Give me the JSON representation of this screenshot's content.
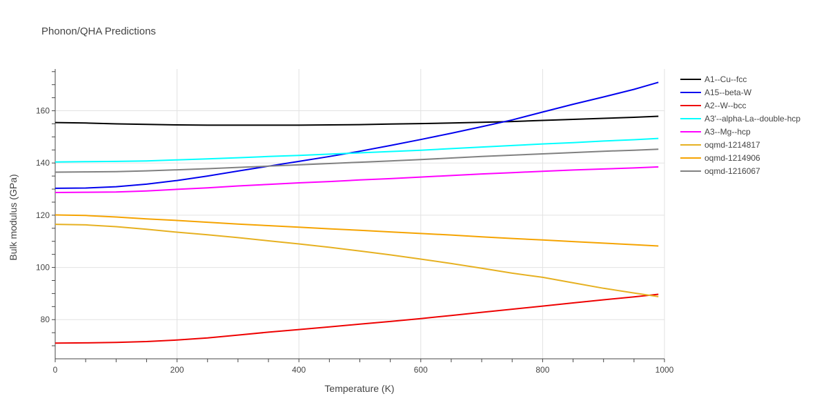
{
  "chart_data": {
    "type": "line",
    "title": "Phonon/QHA Predictions",
    "xlabel": "Temperature (K)",
    "ylabel": "Bulk modulus (GPa)",
    "xlim": [
      0,
      1000
    ],
    "ylim": [
      65,
      176
    ],
    "x_ticks": [
      0,
      200,
      400,
      600,
      800,
      1000
    ],
    "y_ticks": [
      80,
      100,
      120,
      140,
      160
    ],
    "grid": true,
    "legend_position": "right",
    "series": [
      {
        "name": "A1--Cu--fcc",
        "color": "#000000",
        "x": [
          0,
          50,
          100,
          150,
          200,
          250,
          300,
          350,
          400,
          450,
          500,
          550,
          600,
          650,
          700,
          750,
          800,
          850,
          900,
          950,
          990
        ],
        "y": [
          155.5,
          155.3,
          155.0,
          154.8,
          154.6,
          154.5,
          154.5,
          154.5,
          154.5,
          154.6,
          154.7,
          154.9,
          155.1,
          155.3,
          155.6,
          155.9,
          156.3,
          156.7,
          157.1,
          157.5,
          157.9
        ]
      },
      {
        "name": "A15--beta-W",
        "color": "#0000ee",
        "x": [
          0,
          50,
          100,
          150,
          200,
          250,
          300,
          350,
          400,
          450,
          500,
          550,
          600,
          650,
          700,
          750,
          800,
          850,
          900,
          950,
          990
        ],
        "y": [
          130.3,
          130.4,
          130.9,
          131.9,
          133.3,
          135.0,
          136.9,
          138.8,
          140.6,
          142.5,
          144.5,
          146.7,
          149.0,
          151.4,
          153.9,
          156.5,
          159.5,
          162.5,
          165.3,
          168.2,
          170.9
        ]
      },
      {
        "name": "A2--W--bcc",
        "color": "#ee0000",
        "x": [
          0,
          50,
          100,
          150,
          200,
          250,
          300,
          350,
          400,
          450,
          500,
          550,
          600,
          650,
          700,
          750,
          800,
          850,
          900,
          950,
          990
        ],
        "y": [
          71.0,
          71.1,
          71.3,
          71.6,
          72.2,
          73.0,
          74.1,
          75.2,
          76.2,
          77.2,
          78.3,
          79.3,
          80.4,
          81.6,
          82.8,
          84.0,
          85.2,
          86.4,
          87.6,
          88.7,
          89.7
        ]
      },
      {
        "name": "A3'--alpha-La--double-hcp",
        "color": "#00ffff",
        "x": [
          0,
          50,
          100,
          150,
          200,
          250,
          300,
          350,
          400,
          450,
          500,
          550,
          600,
          650,
          700,
          750,
          800,
          850,
          900,
          950,
          990
        ],
        "y": [
          140.4,
          140.5,
          140.6,
          140.8,
          141.2,
          141.6,
          142.0,
          142.5,
          142.9,
          143.4,
          143.9,
          144.4,
          144.9,
          145.5,
          146.1,
          146.7,
          147.3,
          147.8,
          148.4,
          148.9,
          149.4
        ]
      },
      {
        "name": "A3--Mg--hcp",
        "color": "#ff00ff",
        "x": [
          0,
          50,
          100,
          150,
          200,
          250,
          300,
          350,
          400,
          450,
          500,
          550,
          600,
          650,
          700,
          750,
          800,
          850,
          900,
          950,
          990
        ],
        "y": [
          128.7,
          128.8,
          128.9,
          129.3,
          129.9,
          130.5,
          131.2,
          131.8,
          132.4,
          132.9,
          133.5,
          134.0,
          134.6,
          135.2,
          135.8,
          136.3,
          136.8,
          137.3,
          137.7,
          138.1,
          138.5
        ]
      },
      {
        "name": "oqmd-1214817",
        "color": "#e6b020",
        "x": [
          0,
          50,
          100,
          150,
          200,
          250,
          300,
          350,
          400,
          450,
          500,
          550,
          600,
          650,
          700,
          750,
          800,
          850,
          900,
          950,
          990
        ],
        "y": [
          116.5,
          116.3,
          115.6,
          114.6,
          113.5,
          112.5,
          111.4,
          110.2,
          109.0,
          107.7,
          106.3,
          104.8,
          103.2,
          101.5,
          99.7,
          97.8,
          96.2,
          94.1,
          92.0,
          90.2,
          88.8
        ]
      },
      {
        "name": "oqmd-1214906",
        "color": "#f5a300",
        "x": [
          0,
          50,
          100,
          150,
          200,
          250,
          300,
          350,
          400,
          450,
          500,
          550,
          600,
          650,
          700,
          750,
          800,
          850,
          900,
          950,
          990
        ],
        "y": [
          120.1,
          119.9,
          119.3,
          118.6,
          118.0,
          117.3,
          116.6,
          116.0,
          115.4,
          114.8,
          114.2,
          113.6,
          113.0,
          112.4,
          111.7,
          111.1,
          110.5,
          109.9,
          109.3,
          108.7,
          108.2
        ]
      },
      {
        "name": "oqmd-1216067",
        "color": "#808080",
        "x": [
          0,
          50,
          100,
          150,
          200,
          250,
          300,
          350,
          400,
          450,
          500,
          550,
          600,
          650,
          700,
          750,
          800,
          850,
          900,
          950,
          990
        ],
        "y": [
          136.5,
          136.6,
          136.7,
          137.0,
          137.4,
          137.8,
          138.3,
          138.8,
          139.3,
          139.8,
          140.3,
          140.8,
          141.3,
          141.9,
          142.5,
          143.0,
          143.5,
          144.0,
          144.5,
          144.9,
          145.3
        ]
      }
    ]
  }
}
